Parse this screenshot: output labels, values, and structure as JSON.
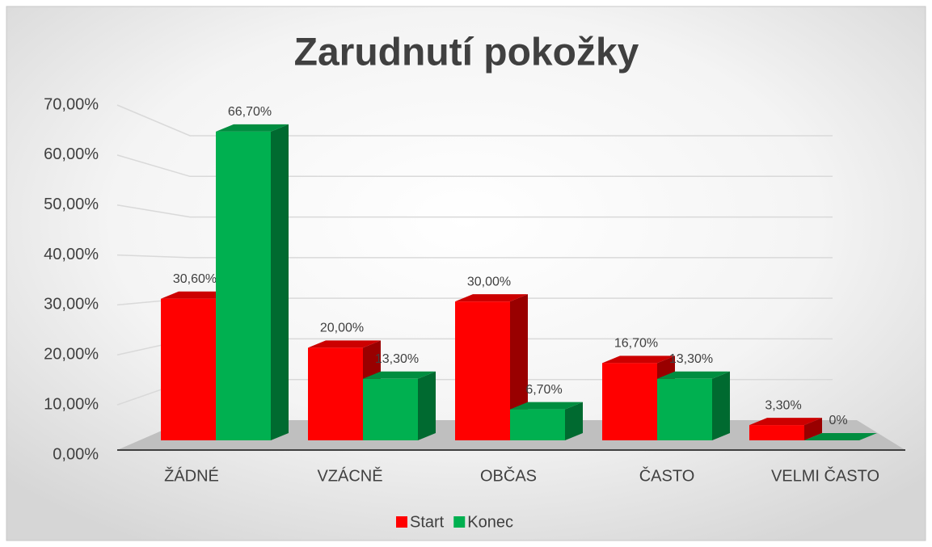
{
  "chart_data": {
    "type": "bar3d",
    "title": "Zarudnutí pokožky",
    "categories": [
      "ŽÁDNÉ",
      "VZÁCNĚ",
      "OBČAS",
      "ČASTO",
      "VELMI ČASTO"
    ],
    "series": [
      {
        "name": "Start",
        "color": "#ff0000",
        "values": [
          30.6,
          20,
          30,
          16.7,
          3.3
        ],
        "value_labels": [
          "30,60%",
          "20,00%",
          "30,00%",
          "16,70%",
          "3,30%"
        ]
      },
      {
        "name": "Konec",
        "color": "#00b050",
        "values": [
          66.7,
          13.3,
          6.7,
          13.3,
          0
        ],
        "value_labels": [
          "66,70%",
          "13,30%",
          "6,70%",
          "13,30%",
          "0%"
        ]
      }
    ],
    "ylim": [
      0,
      70
    ],
    "yticks": [
      {
        "value": 0,
        "label": "0,00%"
      },
      {
        "value": 10,
        "label": "10,00%"
      },
      {
        "value": 20,
        "label": "20,00%"
      },
      {
        "value": 30,
        "label": "30,00%"
      },
      {
        "value": 40,
        "label": "40,00%"
      },
      {
        "value": 50,
        "label": "50,00%"
      },
      {
        "value": 60,
        "label": "60,00%"
      },
      {
        "value": 70,
        "label": "70,00%"
      }
    ],
    "grid": true,
    "legend": "bottom"
  }
}
